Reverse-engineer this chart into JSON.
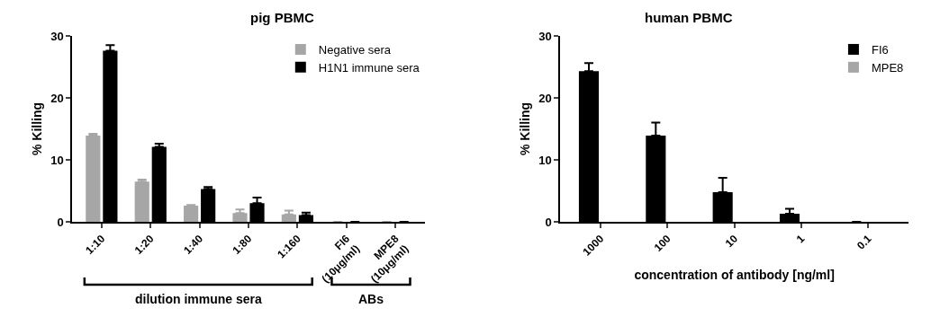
{
  "chart_data": [
    {
      "type": "bar",
      "title": "pig PBMC",
      "ylabel": "% Killing",
      "categories": [
        "1:10",
        "1:20",
        "1:40",
        "1:80",
        "1:160",
        "FI6\n(10μg/ml)",
        "MPE8\n(10μg/ml)"
      ],
      "series": [
        {
          "name": "Negative sera",
          "color": "#a6a6a6",
          "values": [
            13.9,
            6.5,
            2.6,
            1.4,
            1.2,
            0,
            0
          ],
          "errors": [
            [
              13.9,
              14.2
            ],
            [
              6.5,
              6.8
            ],
            [
              2.6,
              2.7
            ],
            [
              1.4,
              2.0
            ],
            [
              1.2,
              1.8
            ],
            null,
            null
          ]
        },
        {
          "name": "H1N1 immune sera",
          "color": "#000000",
          "values": [
            27.6,
            12.1,
            5.3,
            3.0,
            1.1,
            0,
            0
          ],
          "errors": [
            [
              27.6,
              28.5
            ],
            [
              12.1,
              12.6
            ],
            [
              5.3,
              5.6
            ],
            [
              3.0,
              3.9
            ],
            [
              1.1,
              1.5
            ],
            null,
            null
          ]
        }
      ],
      "ylim": [
        0,
        30
      ],
      "yticks": [
        0,
        10,
        20,
        30
      ],
      "legend": "top right",
      "annotations": [
        "dilution immune sera",
        "ABs"
      ]
    },
    {
      "type": "bar",
      "title": "human PBMC",
      "ylabel": "% Killing",
      "xlabel": "concentration of antibody [ng/ml]",
      "categories": [
        "1000",
        "100",
        "10",
        "1",
        "0.1"
      ],
      "series": [
        {
          "name": "FI6",
          "color": "#000000",
          "values": [
            24.3,
            13.9,
            4.8,
            1.3,
            0
          ],
          "errors": [
            [
              24.3,
              25.6
            ],
            [
              13.9,
              16.0
            ],
            [
              4.8,
              7.1
            ],
            [
              1.3,
              2.1
            ],
            null
          ]
        },
        {
          "name": "MPE8",
          "color": "#a6a6a6",
          "values": [
            0,
            0,
            0,
            0,
            0
          ]
        }
      ],
      "ylim": [
        0,
        30
      ],
      "yticks": [
        0,
        10,
        20,
        30
      ],
      "legend": "top right"
    }
  ]
}
